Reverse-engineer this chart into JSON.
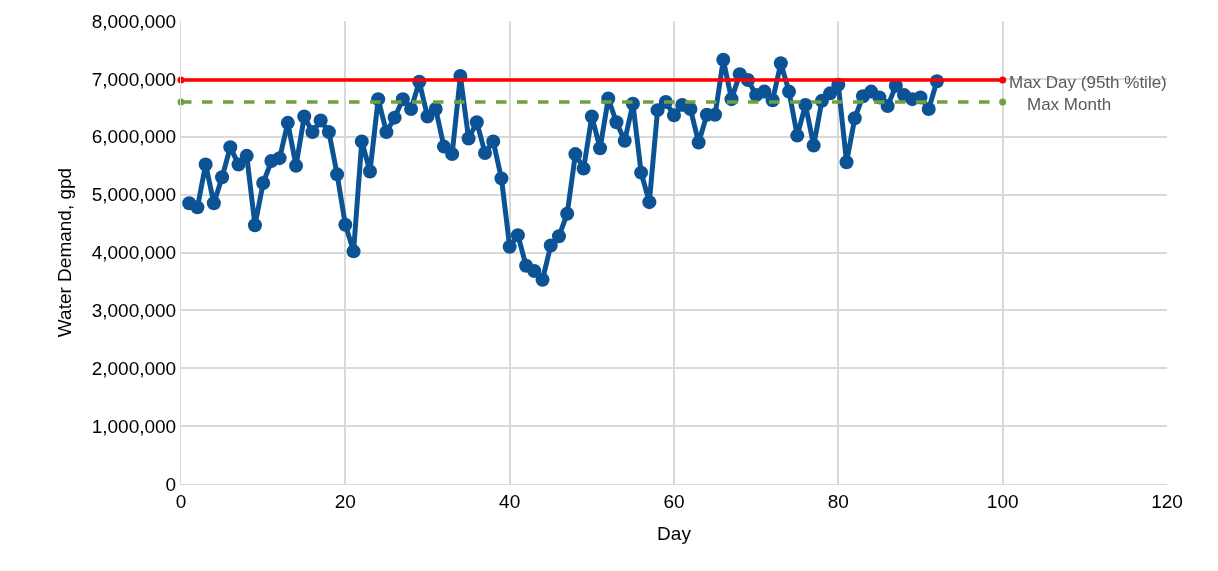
{
  "chart_data": {
    "type": "line",
    "xlabel": "Day",
    "ylabel": "Water Demand, gpd",
    "xlim": [
      0,
      120
    ],
    "xticks": [
      0,
      20,
      40,
      60,
      80,
      100,
      120
    ],
    "ylim": [
      0,
      8000000
    ],
    "yticks": [
      {
        "value": 0,
        "label": "0"
      },
      {
        "value": 1000000,
        "label": "1,000,000"
      },
      {
        "value": 2000000,
        "label": "2,000,000"
      },
      {
        "value": 3000000,
        "label": "3,000,000"
      },
      {
        "value": 4000000,
        "label": "4,000,000"
      },
      {
        "value": 5000000,
        "label": "5,000,000"
      },
      {
        "value": 6000000,
        "label": "6,000,000"
      },
      {
        "value": 7000000,
        "label": "7,000,000"
      },
      {
        "value": 8000000,
        "label": "8,000,000"
      }
    ],
    "grid": true,
    "legend": false,
    "series": [
      {
        "color": "#0b5394",
        "marker": "circle",
        "line_style": "solid",
        "x": [
          1,
          2,
          3,
          4,
          5,
          6,
          7,
          8,
          9,
          10,
          11,
          12,
          13,
          14,
          15,
          16,
          17,
          18,
          19,
          20,
          21,
          22,
          23,
          24,
          25,
          26,
          27,
          28,
          29,
          30,
          31,
          32,
          33,
          34,
          35,
          36,
          37,
          38,
          39,
          40,
          41,
          42,
          43,
          44,
          45,
          46,
          47,
          48,
          49,
          50,
          51,
          52,
          53,
          54,
          55,
          56,
          57,
          58,
          59,
          60,
          61,
          62,
          63,
          64,
          65,
          66,
          67,
          68,
          69,
          70,
          71,
          72,
          73,
          74,
          75,
          76,
          77,
          78,
          79,
          80,
          81,
          82,
          83,
          84,
          85,
          86,
          87,
          88,
          89,
          90,
          91,
          92
        ],
        "values": [
          4850000,
          4780000,
          5520000,
          4850000,
          5300000,
          5820000,
          5520000,
          5670000,
          4470000,
          5200000,
          5580000,
          5630000,
          6240000,
          5500000,
          6350000,
          6080000,
          6280000,
          6080000,
          5350000,
          4480000,
          4020000,
          5920000,
          5400000,
          6650000,
          6080000,
          6330000,
          6650000,
          6480000,
          6950000,
          6350000,
          6480000,
          5830000,
          5700000,
          7050000,
          5970000,
          6250000,
          5720000,
          5920000,
          5280000,
          4100000,
          4300000,
          3770000,
          3680000,
          3530000,
          4120000,
          4280000,
          4670000,
          5700000,
          5450000,
          6350000,
          5800000,
          6660000,
          6250000,
          5930000,
          6570000,
          5380000,
          4870000,
          6460000,
          6600000,
          6370000,
          6550000,
          6480000,
          5900000,
          6380000,
          6380000,
          7330000,
          6650000,
          7080000,
          6980000,
          6720000,
          6780000,
          6630000,
          7270000,
          6780000,
          6020000,
          6550000,
          5850000,
          6620000,
          6750000,
          6900000,
          5560000,
          6320000,
          6700000,
          6780000,
          6680000,
          6530000,
          6880000,
          6720000,
          6650000,
          6680000,
          6480000,
          6960000
        ]
      },
      {
        "name": "Max Day (95th %tile)",
        "color": "#ff0000",
        "marker": "circle",
        "line_style": "solid",
        "x": [
          0,
          100
        ],
        "values": [
          6980000,
          6980000
        ]
      },
      {
        "name": "Max Month",
        "color": "#70a040",
        "marker": "circle",
        "line_style": "dashed",
        "x": [
          0,
          100
        ],
        "values": [
          6600000,
          6600000
        ]
      }
    ]
  }
}
